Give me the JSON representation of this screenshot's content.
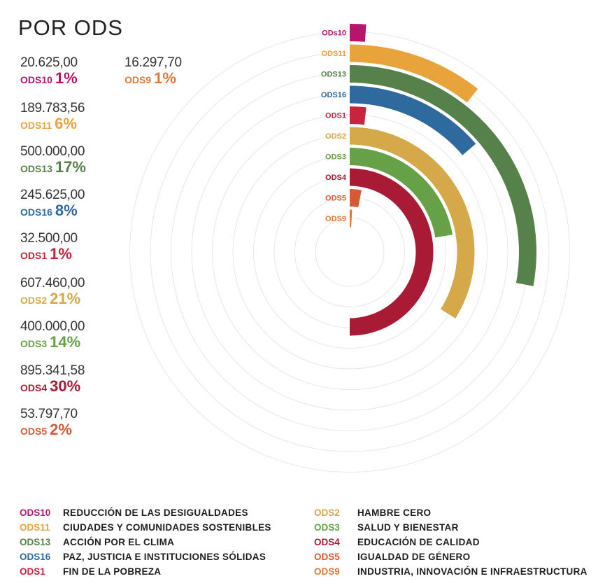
{
  "title": "POR ODS",
  "chart_data": {
    "type": "radial-bar",
    "series": [
      {
        "code": "ODS10",
        "label": "ODs10",
        "amount": "20.625,00",
        "value": 20625.0,
        "percent": "1%",
        "name": "REDUCCIÓN DE LAS DESIGUALDADES",
        "color": "#B5156B"
      },
      {
        "code": "ODS11",
        "label": "ODS11",
        "amount": "189.783,56",
        "value": 189783.56,
        "percent": "6%",
        "name": "CIUDADES Y COMUNIDADES SOSTENIBLES",
        "color": "#E8A33A"
      },
      {
        "code": "ODS13",
        "label": "ODS13",
        "amount": "500.000,00",
        "value": 500000.0,
        "percent": "17%",
        "name": "ACCIÓN POR EL CLIMA",
        "color": "#56814A"
      },
      {
        "code": "ODS16",
        "label": "ODS16",
        "amount": "245.625,00",
        "value": 245625.0,
        "percent": "8%",
        "name": "PAZ, JUSTICIA E INSTITUCIONES SÓLIDAS",
        "color": "#2F6A9F"
      },
      {
        "code": "ODS1",
        "label": "ODS1",
        "amount": "32.500,00",
        "value": 32500.0,
        "percent": "1%",
        "name": "FIN DE LA POBREZA",
        "color": "#C8233F"
      },
      {
        "code": "ODS2",
        "label": "ODS2",
        "amount": "607.460,00",
        "value": 607460.0,
        "percent": "21%",
        "name": "HAMBRE CERO",
        "color": "#D5A84A"
      },
      {
        "code": "ODS3",
        "label": "ODS3",
        "amount": "400.000,00",
        "value": 400000.0,
        "percent": "14%",
        "name": "SALUD Y BIENESTAR",
        "color": "#66A047"
      },
      {
        "code": "ODS4",
        "label": "ODS4",
        "amount": "895.341,58",
        "value": 895341.58,
        "percent": "30%",
        "name": "EDUCACIÓN DE CALIDAD",
        "color": "#A91B34"
      },
      {
        "code": "ODS5",
        "label": "ODS5",
        "amount": "53.797,70",
        "value": 53797.7,
        "percent": "2%",
        "name": "IGUALDAD DE GÉNERO",
        "color": "#D65A34"
      },
      {
        "code": "ODS9",
        "label": "ODS9",
        "amount": "16.297,70",
        "value": 16297.7,
        "percent": "1%",
        "name": "INDUSTRIA, INNOVACIÓN E INFRAESTRUCTURA",
        "color": "#E07A3A"
      }
    ]
  }
}
